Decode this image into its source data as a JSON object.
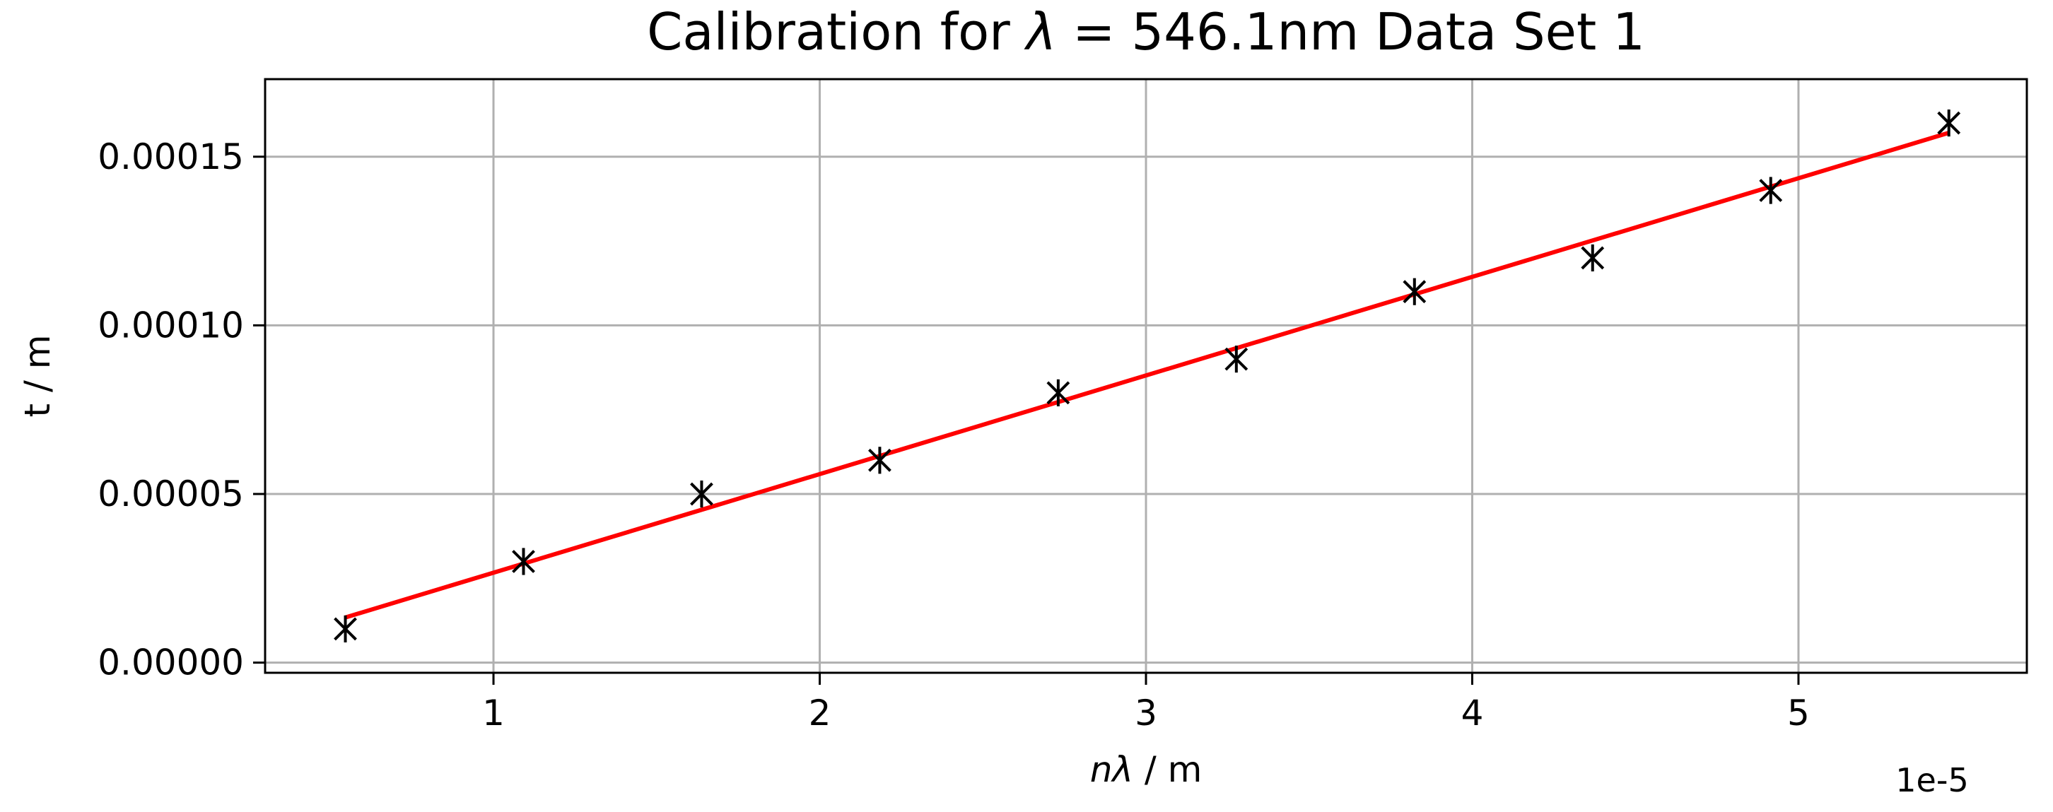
{
  "chart_data": {
    "type": "scatter",
    "title_prefix": "Calibration for ",
    "title_symbol": "λ",
    "title_suffix": " = 546.1nm Data Set 1",
    "xlabel_symbol": "nλ",
    "xlabel_suffix": " / m",
    "ylabel": "t / m",
    "x_offset_label": "1e-5",
    "x_ticks": [
      1,
      2,
      3,
      4,
      5
    ],
    "x_tick_labels": [
      "1",
      "2",
      "3",
      "4",
      "5"
    ],
    "y_ticks": [
      0,
      5e-05,
      0.0001,
      0.00015
    ],
    "y_tick_labels": [
      "0.00000",
      "0.00005",
      "0.00010",
      "0.00015"
    ],
    "xlim": [
      0.3,
      5.7
    ],
    "ylim": [
      -3e-06,
      0.000173
    ],
    "grid": true,
    "series": [
      {
        "x": [
          0.546,
          1.092,
          1.638,
          2.184,
          2.731,
          3.277,
          3.823,
          4.369,
          4.915,
          5.461
        ],
        "y": [
          1e-05,
          3e-05,
          5e-05,
          6e-05,
          8e-05,
          9e-05,
          0.00011,
          0.00012,
          0.00014,
          0.00016
        ],
        "yerr": 4e-06,
        "marker": "x",
        "color": "#000000"
      },
      {
        "type": "line",
        "x": [
          0.546,
          5.461
        ],
        "y": [
          1.34e-05,
          0.0001571
        ],
        "color": "#ff0000"
      }
    ]
  }
}
